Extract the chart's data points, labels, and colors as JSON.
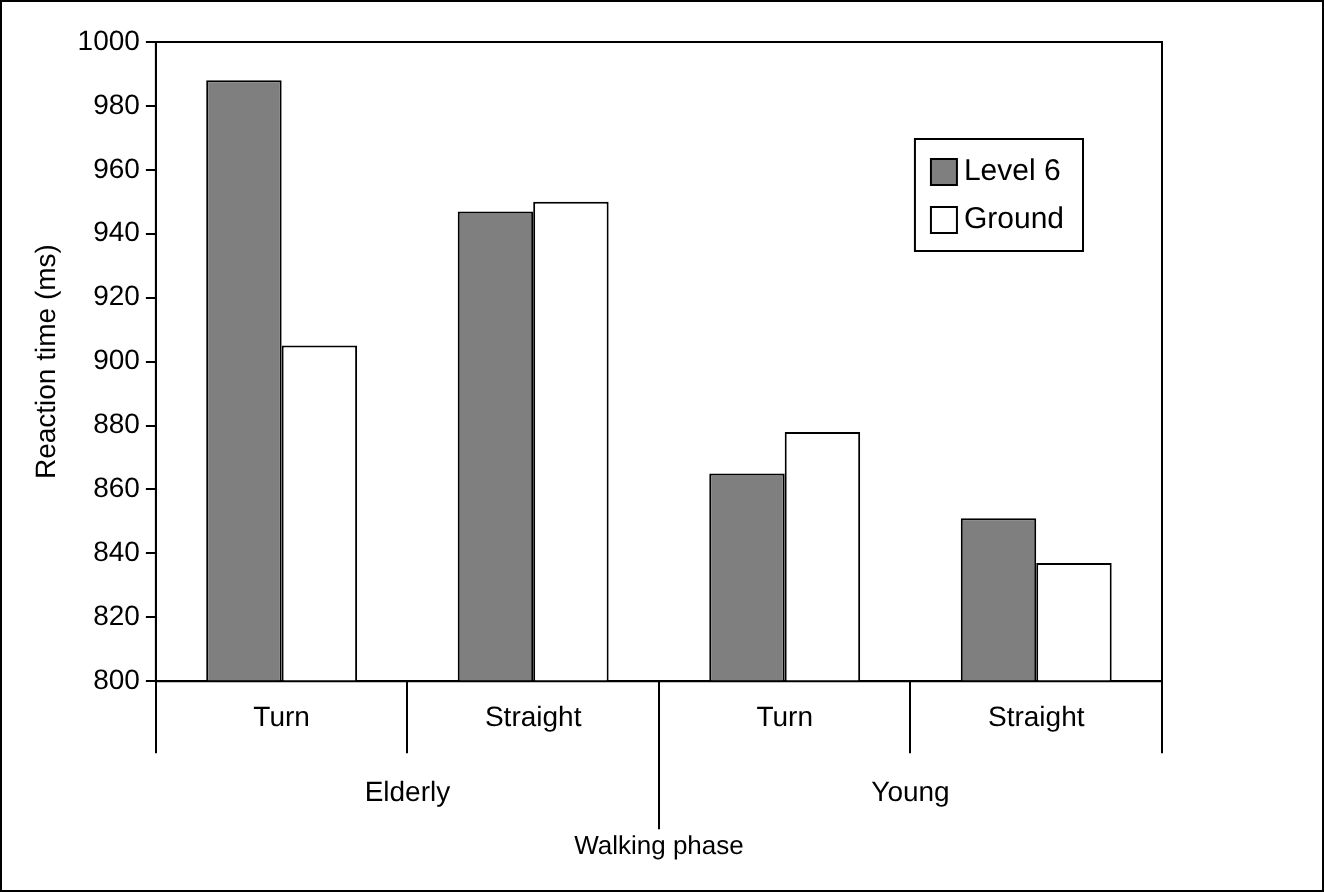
{
  "chart_data": {
    "type": "bar",
    "xlabel": "Walking phase",
    "ylabel": "Reaction time (ms)",
    "categories": [
      "Turn",
      "Straight",
      "Turn",
      "Straight"
    ],
    "annotations": [
      "Elderly",
      "Young"
    ],
    "series": [
      {
        "name": "Level 6",
        "color": "#7f7f7f",
        "values": [
          988,
          947,
          865,
          851
        ]
      },
      {
        "name": "Ground",
        "color": "#ffffff",
        "values": [
          905,
          950,
          878,
          837
        ]
      }
    ],
    "ylim": [
      800,
      1000
    ],
    "yticks": [
      800,
      820,
      840,
      860,
      880,
      900,
      920,
      940,
      960,
      980,
      1000
    ],
    "grid": false,
    "legend": "top right"
  }
}
